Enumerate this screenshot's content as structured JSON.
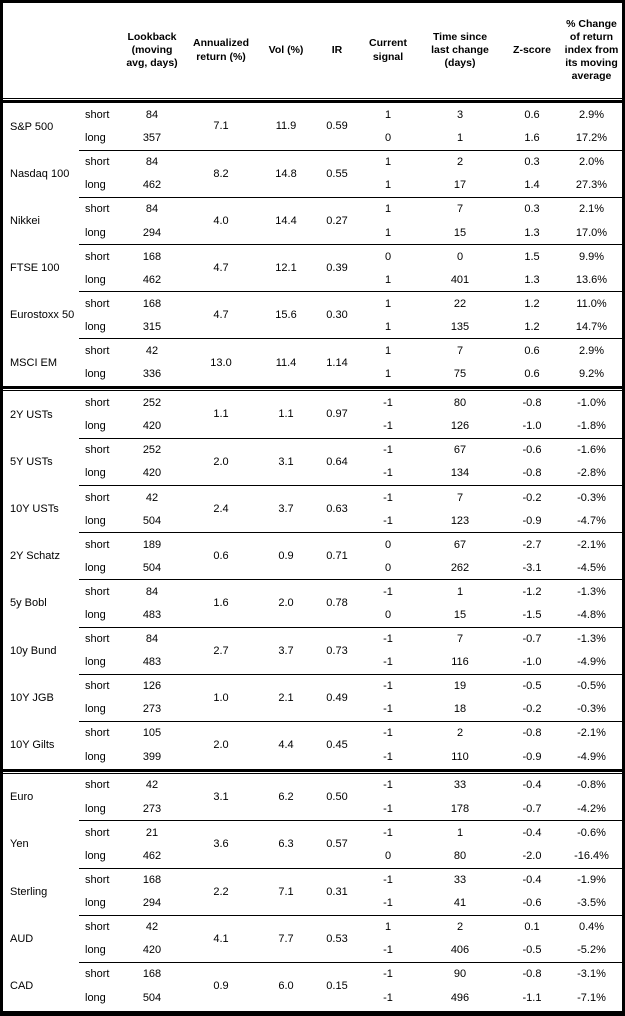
{
  "table": {
    "column_headers": [
      "Lookback (moving avg, days)",
      "Annualized return (%)",
      "Vol (%)",
      "IR",
      "Current signal",
      "Time since last change (days)",
      "Z-score",
      "% Change of return index from its moving average"
    ],
    "sections": [
      {
        "groups": [
          {
            "asset": "S&P 500",
            "annualized_return": "7.1",
            "vol": "11.9",
            "ir": "0.59",
            "rows": [
              {
                "horizon": "short",
                "lookback": "84",
                "signal": "1",
                "days_since_change": "3",
                "z_score": "0.6",
                "pct_change": "2.9%"
              },
              {
                "horizon": "long",
                "lookback": "357",
                "signal": "0",
                "days_since_change": "1",
                "z_score": "1.6",
                "pct_change": "17.2%"
              }
            ]
          },
          {
            "asset": "Nasdaq 100",
            "annualized_return": "8.2",
            "vol": "14.8",
            "ir": "0.55",
            "rows": [
              {
                "horizon": "short",
                "lookback": "84",
                "signal": "1",
                "days_since_change": "2",
                "z_score": "0.3",
                "pct_change": "2.0%"
              },
              {
                "horizon": "long",
                "lookback": "462",
                "signal": "1",
                "days_since_change": "17",
                "z_score": "1.4",
                "pct_change": "27.3%"
              }
            ]
          },
          {
            "asset": "Nikkei",
            "annualized_return": "4.0",
            "vol": "14.4",
            "ir": "0.27",
            "rows": [
              {
                "horizon": "short",
                "lookback": "84",
                "signal": "1",
                "days_since_change": "7",
                "z_score": "0.3",
                "pct_change": "2.1%"
              },
              {
                "horizon": "long",
                "lookback": "294",
                "signal": "1",
                "days_since_change": "15",
                "z_score": "1.3",
                "pct_change": "17.0%"
              }
            ]
          },
          {
            "asset": "FTSE 100",
            "annualized_return": "4.7",
            "vol": "12.1",
            "ir": "0.39",
            "rows": [
              {
                "horizon": "short",
                "lookback": "168",
                "signal": "0",
                "days_since_change": "0",
                "z_score": "1.5",
                "pct_change": "9.9%"
              },
              {
                "horizon": "long",
                "lookback": "462",
                "signal": "1",
                "days_since_change": "401",
                "z_score": "1.3",
                "pct_change": "13.6%"
              }
            ]
          },
          {
            "asset": "Eurostoxx 50",
            "annualized_return": "4.7",
            "vol": "15.6",
            "ir": "0.30",
            "rows": [
              {
                "horizon": "short",
                "lookback": "168",
                "signal": "1",
                "days_since_change": "22",
                "z_score": "1.2",
                "pct_change": "11.0%"
              },
              {
                "horizon": "long",
                "lookback": "315",
                "signal": "1",
                "days_since_change": "135",
                "z_score": "1.2",
                "pct_change": "14.7%"
              }
            ]
          },
          {
            "asset": "MSCI EM",
            "annualized_return": "13.0",
            "vol": "11.4",
            "ir": "1.14",
            "rows": [
              {
                "horizon": "short",
                "lookback": "42",
                "signal": "1",
                "days_since_change": "7",
                "z_score": "0.6",
                "pct_change": "2.9%"
              },
              {
                "horizon": "long",
                "lookback": "336",
                "signal": "1",
                "days_since_change": "75",
                "z_score": "0.6",
                "pct_change": "9.2%"
              }
            ]
          }
        ]
      },
      {
        "groups": [
          {
            "asset": "2Y USTs",
            "annualized_return": "1.1",
            "vol": "1.1",
            "ir": "0.97",
            "rows": [
              {
                "horizon": "short",
                "lookback": "252",
                "signal": "-1",
                "days_since_change": "80",
                "z_score": "-0.8",
                "pct_change": "-1.0%"
              },
              {
                "horizon": "long",
                "lookback": "420",
                "signal": "-1",
                "days_since_change": "126",
                "z_score": "-1.0",
                "pct_change": "-1.8%"
              }
            ]
          },
          {
            "asset": "5Y USTs",
            "annualized_return": "2.0",
            "vol": "3.1",
            "ir": "0.64",
            "rows": [
              {
                "horizon": "short",
                "lookback": "252",
                "signal": "-1",
                "days_since_change": "67",
                "z_score": "-0.6",
                "pct_change": "-1.6%"
              },
              {
                "horizon": "long",
                "lookback": "420",
                "signal": "-1",
                "days_since_change": "134",
                "z_score": "-0.8",
                "pct_change": "-2.8%"
              }
            ]
          },
          {
            "asset": "10Y USTs",
            "annualized_return": "2.4",
            "vol": "3.7",
            "ir": "0.63",
            "rows": [
              {
                "horizon": "short",
                "lookback": "42",
                "signal": "-1",
                "days_since_change": "7",
                "z_score": "-0.2",
                "pct_change": "-0.3%"
              },
              {
                "horizon": "long",
                "lookback": "504",
                "signal": "-1",
                "days_since_change": "123",
                "z_score": "-0.9",
                "pct_change": "-4.7%"
              }
            ]
          },
          {
            "asset": "2Y Schatz",
            "annualized_return": "0.6",
            "vol": "0.9",
            "ir": "0.71",
            "rows": [
              {
                "horizon": "short",
                "lookback": "189",
                "signal": "0",
                "days_since_change": "67",
                "z_score": "-2.7",
                "pct_change": "-2.1%"
              },
              {
                "horizon": "long",
                "lookback": "504",
                "signal": "0",
                "days_since_change": "262",
                "z_score": "-3.1",
                "pct_change": "-4.5%"
              }
            ]
          },
          {
            "asset": "5y Bobl",
            "annualized_return": "1.6",
            "vol": "2.0",
            "ir": "0.78",
            "rows": [
              {
                "horizon": "short",
                "lookback": "84",
                "signal": "-1",
                "days_since_change": "1",
                "z_score": "-1.2",
                "pct_change": "-1.3%"
              },
              {
                "horizon": "long",
                "lookback": "483",
                "signal": "0",
                "days_since_change": "15",
                "z_score": "-1.5",
                "pct_change": "-4.8%"
              }
            ]
          },
          {
            "asset": "10y Bund",
            "annualized_return": "2.7",
            "vol": "3.7",
            "ir": "0.73",
            "rows": [
              {
                "horizon": "short",
                "lookback": "84",
                "signal": "-1",
                "days_since_change": "7",
                "z_score": "-0.7",
                "pct_change": "-1.3%"
              },
              {
                "horizon": "long",
                "lookback": "483",
                "signal": "-1",
                "days_since_change": "116",
                "z_score": "-1.0",
                "pct_change": "-4.9%"
              }
            ]
          },
          {
            "asset": "10Y JGB",
            "annualized_return": "1.0",
            "vol": "2.1",
            "ir": "0.49",
            "rows": [
              {
                "horizon": "short",
                "lookback": "126",
                "signal": "-1",
                "days_since_change": "19",
                "z_score": "-0.5",
                "pct_change": "-0.5%"
              },
              {
                "horizon": "long",
                "lookback": "273",
                "signal": "-1",
                "days_since_change": "18",
                "z_score": "-0.2",
                "pct_change": "-0.3%"
              }
            ]
          },
          {
            "asset": "10Y Gilts",
            "annualized_return": "2.0",
            "vol": "4.4",
            "ir": "0.45",
            "rows": [
              {
                "horizon": "short",
                "lookback": "105",
                "signal": "-1",
                "days_since_change": "2",
                "z_score": "-0.8",
                "pct_change": "-2.1%"
              },
              {
                "horizon": "long",
                "lookback": "399",
                "signal": "-1",
                "days_since_change": "110",
                "z_score": "-0.9",
                "pct_change": "-4.9%"
              }
            ]
          }
        ]
      },
      {
        "groups": [
          {
            "asset": "Euro",
            "annualized_return": "3.1",
            "vol": "6.2",
            "ir": "0.50",
            "rows": [
              {
                "horizon": "short",
                "lookback": "42",
                "signal": "-1",
                "days_since_change": "33",
                "z_score": "-0.4",
                "pct_change": "-0.8%"
              },
              {
                "horizon": "long",
                "lookback": "273",
                "signal": "-1",
                "days_since_change": "178",
                "z_score": "-0.7",
                "pct_change": "-4.2%"
              }
            ]
          },
          {
            "asset": "Yen",
            "annualized_return": "3.6",
            "vol": "6.3",
            "ir": "0.57",
            "rows": [
              {
                "horizon": "short",
                "lookback": "21",
                "signal": "-1",
                "days_since_change": "1",
                "z_score": "-0.4",
                "pct_change": "-0.6%"
              },
              {
                "horizon": "long",
                "lookback": "462",
                "signal": "0",
                "days_since_change": "80",
                "z_score": "-2.0",
                "pct_change": "-16.4%"
              }
            ]
          },
          {
            "asset": "Sterling",
            "annualized_return": "2.2",
            "vol": "7.1",
            "ir": "0.31",
            "rows": [
              {
                "horizon": "short",
                "lookback": "168",
                "signal": "-1",
                "days_since_change": "33",
                "z_score": "-0.4",
                "pct_change": "-1.9%"
              },
              {
                "horizon": "long",
                "lookback": "294",
                "signal": "-1",
                "days_since_change": "41",
                "z_score": "-0.6",
                "pct_change": "-3.5%"
              }
            ]
          },
          {
            "asset": "AUD",
            "annualized_return": "4.1",
            "vol": "7.7",
            "ir": "0.53",
            "rows": [
              {
                "horizon": "short",
                "lookback": "42",
                "signal": "1",
                "days_since_change": "2",
                "z_score": "0.1",
                "pct_change": "0.4%"
              },
              {
                "horizon": "long",
                "lookback": "420",
                "signal": "-1",
                "days_since_change": "406",
                "z_score": "-0.5",
                "pct_change": "-5.2%"
              }
            ]
          },
          {
            "asset": "CAD",
            "annualized_return": "0.9",
            "vol": "6.0",
            "ir": "0.15",
            "rows": [
              {
                "horizon": "short",
                "lookback": "168",
                "signal": "-1",
                "days_since_change": "90",
                "z_score": "-0.8",
                "pct_change": "-3.1%"
              },
              {
                "horizon": "long",
                "lookback": "504",
                "signal": "-1",
                "days_since_change": "496",
                "z_score": "-1.1",
                "pct_change": "-7.1%"
              }
            ]
          }
        ]
      }
    ]
  }
}
